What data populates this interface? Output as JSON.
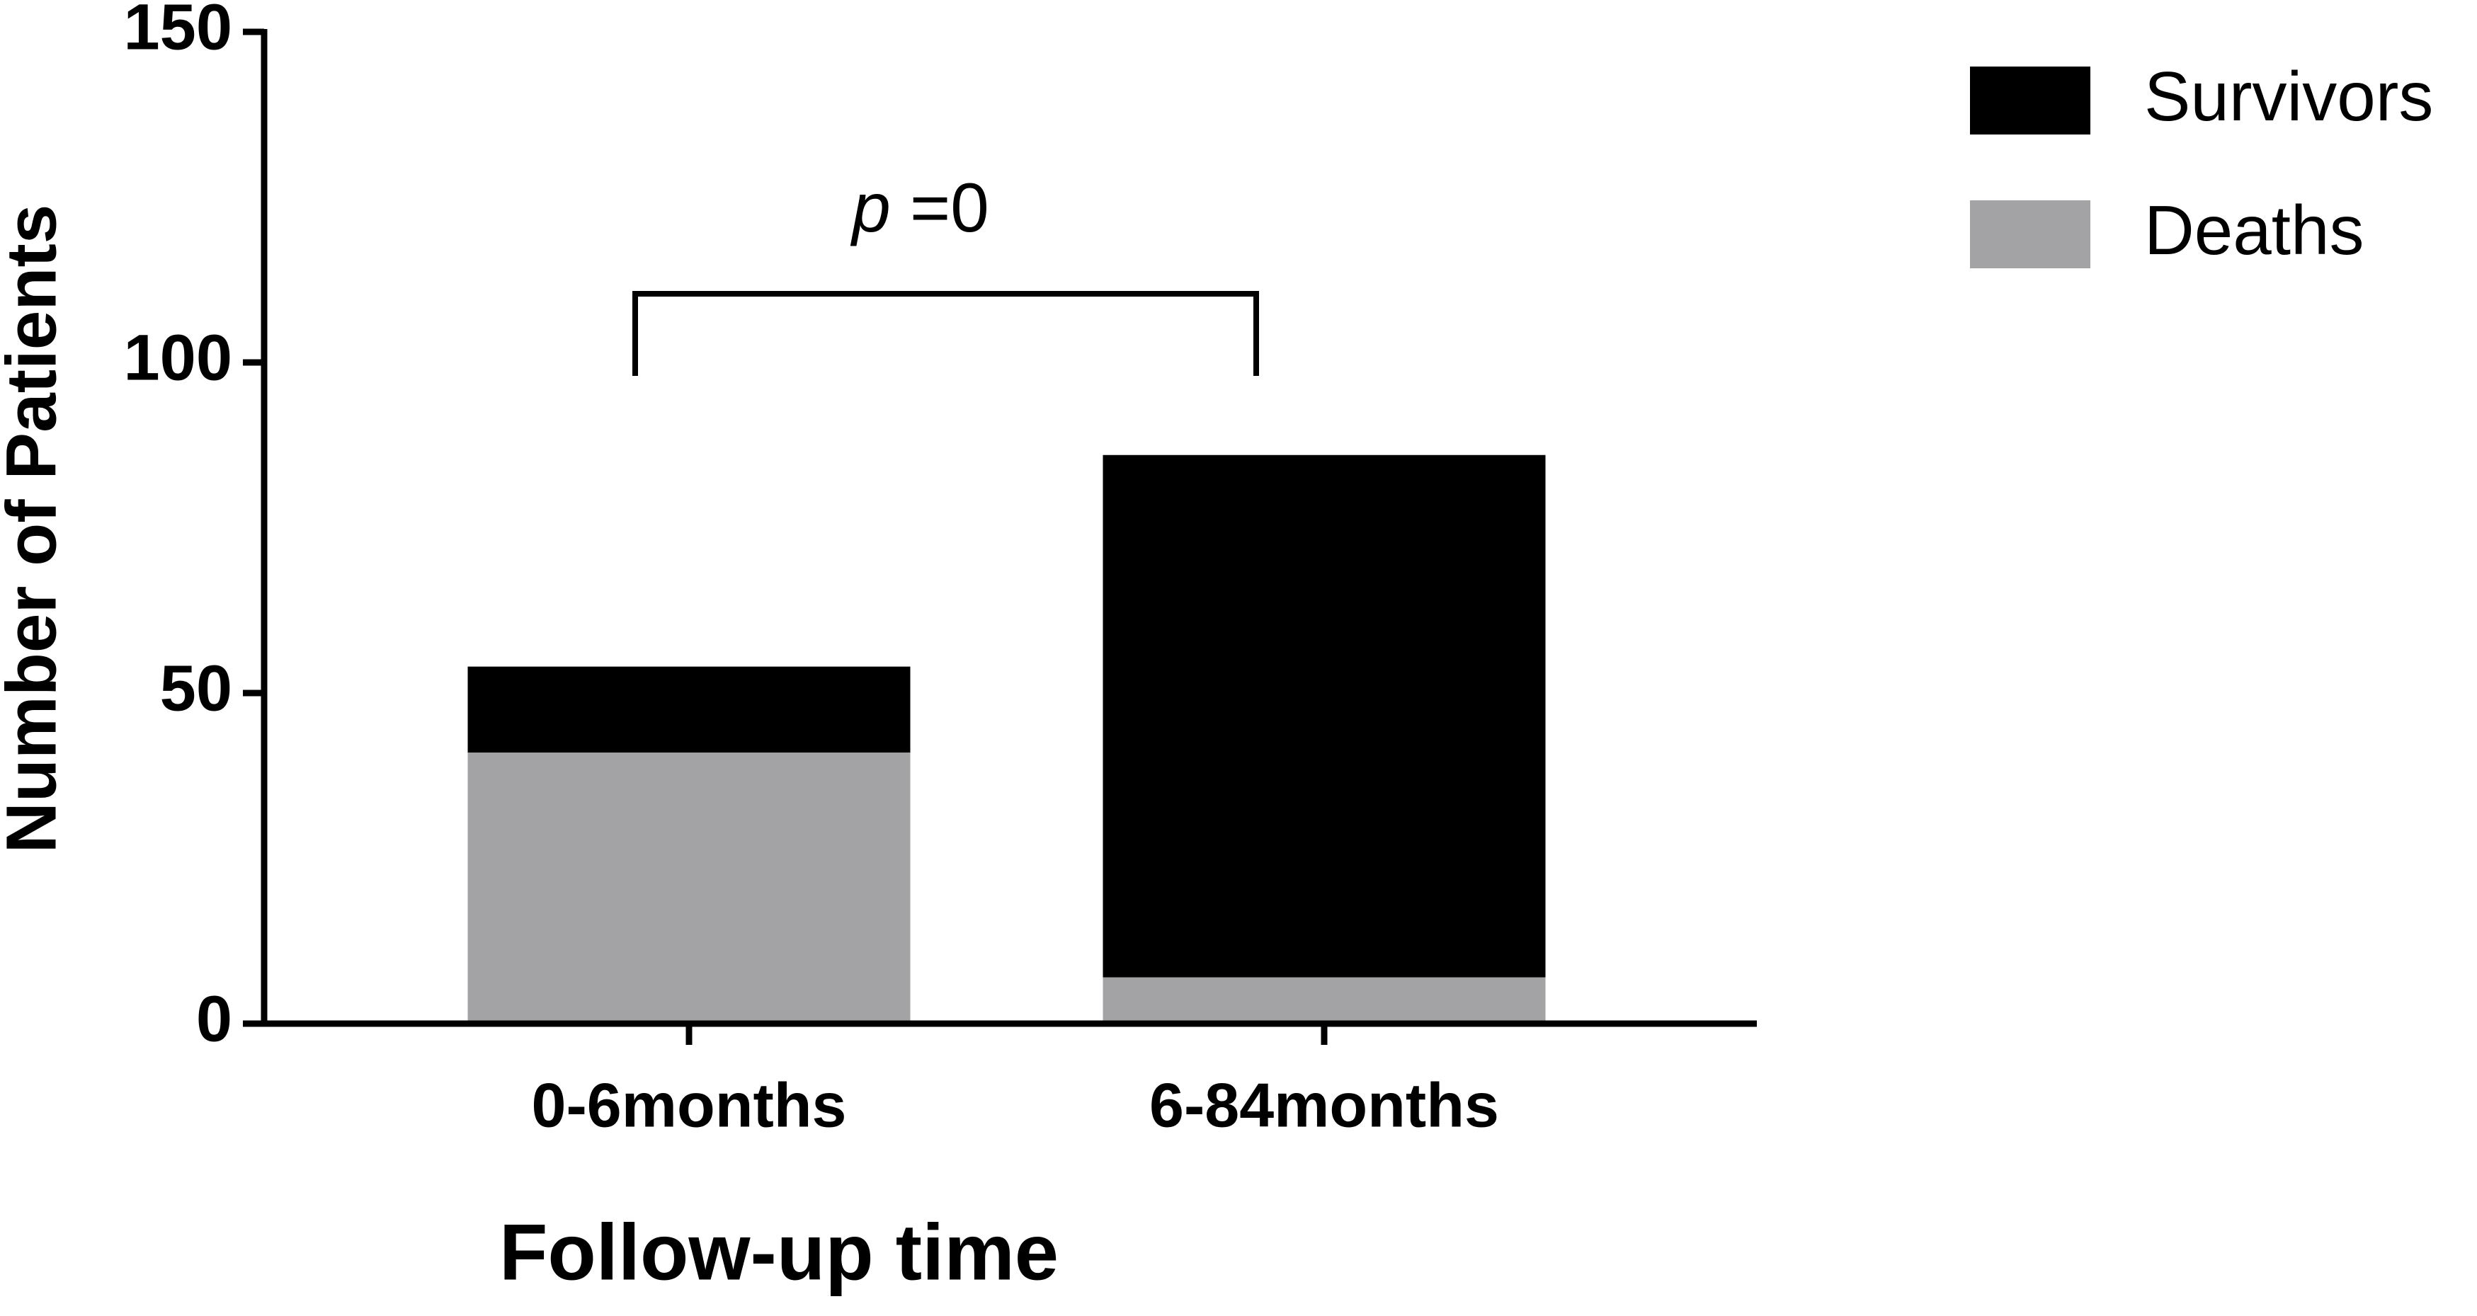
{
  "chart_data": {
    "type": "stacked_bar",
    "x_label": "Follow-up time",
    "y_label": "Number of Patients",
    "categories": [
      "0-6months",
      "6-84months"
    ],
    "series": [
      {
        "name": "Deaths",
        "color": "#a3a3a6",
        "values": [
          41,
          7
        ]
      },
      {
        "name": "Survivors",
        "color": "#000000",
        "values": [
          13,
          79
        ]
      }
    ],
    "ylim": [
      0,
      150
    ],
    "yticks": [
      0,
      50,
      100,
      150
    ],
    "annotation": {
      "symbol": "p",
      "text": "=0"
    },
    "legend": "top-right"
  }
}
